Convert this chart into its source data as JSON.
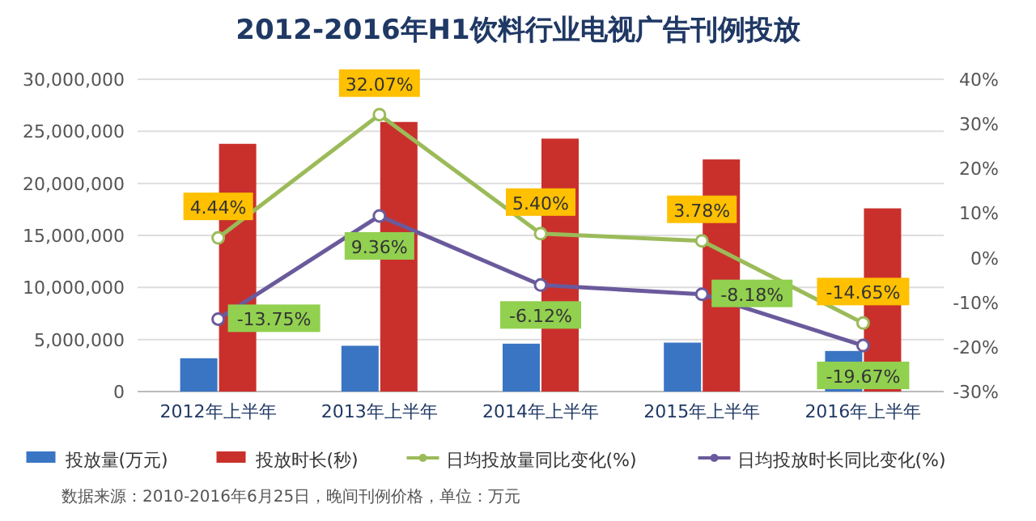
{
  "chart_data": {
    "type": "bar",
    "title": "2012-2016年H1饮料行业电视广告刊例投放",
    "categories": [
      "2012年上半年",
      "2013年上半年",
      "2014年上半年",
      "2015年上半年",
      "2016年上半年"
    ],
    "series": [
      {
        "name": "投放量(万元)",
        "color": "#3a75c4",
        "values": [
          3200000,
          4400000,
          4600000,
          4700000,
          3900000
        ]
      },
      {
        "name": "投放时长(秒)",
        "color": "#c9302c",
        "values": [
          23800000,
          25900000,
          24300000,
          22300000,
          17600000
        ]
      },
      {
        "name": "日均投放量同比变化(%)",
        "type": "line",
        "axis": "y2",
        "color": "#9bbb59",
        "marker": "circle",
        "values": [
          4.44,
          32.07,
          5.4,
          3.78,
          -14.65
        ],
        "value_labels": [
          "4.44%",
          "32.07%",
          "5.40%",
          "3.78%",
          "-14.65%"
        ]
      },
      {
        "name": "日均投放时长同比变化(%)",
        "type": "line",
        "axis": "y2",
        "color": "#6a5a9c",
        "marker": "circle",
        "values": [
          -13.75,
          9.36,
          -6.12,
          -8.18,
          -19.67
        ],
        "value_labels": [
          "-13.75%",
          "9.36%",
          "-6.12%",
          "-8.18%",
          "-19.67%"
        ]
      }
    ],
    "ylim": [
      0,
      30000000
    ],
    "yticks": [
      {
        "value": 0,
        "label": "0"
      },
      {
        "value": 5000000,
        "label": "5,000,000"
      },
      {
        "value": 10000000,
        "label": "10,000,000"
      },
      {
        "value": 15000000,
        "label": "15,000,000"
      },
      {
        "value": 20000000,
        "label": "20,000,000"
      },
      {
        "value": 25000000,
        "label": "25,000,000"
      },
      {
        "value": 30000000,
        "label": "30,000,000"
      }
    ],
    "y2lim": [
      -30,
      40
    ],
    "y2ticks": [
      {
        "value": -30,
        "label": "-30%"
      },
      {
        "value": -20,
        "label": "-20%"
      },
      {
        "value": -10,
        "label": "-10%"
      },
      {
        "value": 0,
        "label": "0%"
      },
      {
        "value": 10,
        "label": "10%"
      },
      {
        "value": 20,
        "label": "20%"
      },
      {
        "value": 30,
        "label": "30%"
      },
      {
        "value": 40,
        "label": "40%"
      }
    ],
    "grid": "y",
    "legend": "bottom",
    "annotations": [
      "数据来源：2010-2016年6月25日，晚间刊例价格，单位：万元"
    ]
  }
}
